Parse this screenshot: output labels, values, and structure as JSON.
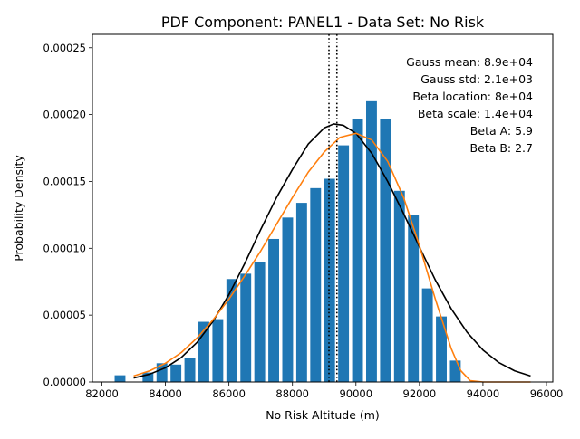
{
  "chart_data": {
    "type": "bar",
    "title": "PDF Component: PANEL1 - Data Set: No Risk",
    "xlabel": "No Risk Altitude (m)",
    "ylabel": "Probability Density",
    "xlim": [
      81700,
      96200
    ],
    "ylim": [
      0,
      0.00026
    ],
    "xticks": [
      82000,
      84000,
      86000,
      88000,
      90000,
      92000,
      94000,
      96000
    ],
    "xtick_labels": [
      "82000",
      "84000",
      "86000",
      "88000",
      "90000",
      "92000",
      "94000",
      "96000"
    ],
    "yticks": [
      0,
      5e-05,
      0.0001,
      0.00015,
      0.0002,
      0.00025
    ],
    "ytick_labels": [
      "0.00000",
      "0.00005",
      "0.00010",
      "0.00015",
      "0.00020",
      "0.00025"
    ],
    "grid": false,
    "histogram": {
      "name": "No Risk",
      "color": "#1f77b4",
      "bin_width": 440,
      "bar_width": 340,
      "bin_centers": [
        82570,
        83450,
        83890,
        84330,
        84770,
        85210,
        85650,
        86090,
        86530,
        86970,
        87410,
        87850,
        88290,
        88730,
        89170,
        89610,
        90050,
        90490,
        90930,
        91370,
        91810,
        92250,
        92690,
        93130
      ],
      "values": [
        5e-06,
        7e-06,
        1.4e-05,
        1.3e-05,
        1.8e-05,
        4.5e-05,
        4.7e-05,
        7.7e-05,
        8.1e-05,
        9e-05,
        0.000107,
        0.000123,
        0.000134,
        0.000145,
        0.000152,
        0.000177,
        0.000197,
        0.00021,
        0.000197,
        0.000143,
        0.000125,
        7e-05,
        4.9e-05,
        1.6e-05
      ]
    },
    "series": [
      {
        "type": "line",
        "color": "#000000",
        "x": [
          83000,
          83500,
          84000,
          84500,
          85000,
          85500,
          86000,
          86500,
          87000,
          87500,
          88000,
          88500,
          89000,
          89300,
          89600,
          90000,
          90500,
          91000,
          91500,
          92000,
          92500,
          93000,
          93500,
          94000,
          94500,
          95000,
          95500
        ],
        "y": [
          3e-06,
          5.8e-06,
          1.06e-05,
          1.83e-05,
          2.97e-05,
          4.54e-05,
          6.54e-05,
          8.88e-05,
          0.000114,
          0.000138,
          0.000159,
          0.000178,
          0.00019,
          0.000193,
          0.000192,
          0.000186,
          0.000171,
          0.00015,
          0.000126,
          0.000101,
          7.63e-05,
          5.48e-05,
          3.72e-05,
          2.39e-05,
          1.45e-05,
          8.3e-06,
          4.5e-06
        ]
      },
      {
        "type": "line",
        "color": "#ff7f0e",
        "x": [
          83000,
          83500,
          84000,
          84500,
          85000,
          85500,
          86000,
          86500,
          87000,
          87500,
          88000,
          88500,
          89000,
          89500,
          90000,
          90500,
          91000,
          91500,
          92000,
          92500,
          93000,
          93300,
          93600,
          94000,
          94500,
          95000,
          95500
        ],
        "y": [
          4.5e-06,
          8.3e-06,
          1.4e-05,
          2.2e-05,
          3.3e-05,
          4.65e-05,
          6.2e-05,
          7.95e-05,
          9.8e-05,
          0.000118,
          0.000138,
          0.000157,
          0.000172,
          0.000183,
          0.000186,
          0.000181,
          0.000165,
          0.000138,
          0.000102,
          6.2e-05,
          2.5e-05,
          8.5e-06,
          1e-06,
          0,
          0,
          0,
          0
        ]
      }
    ],
    "vlines": [
      {
        "x": 89150,
        "style": "dotted",
        "color": "#000000"
      },
      {
        "x": 89400,
        "style": "dotted",
        "color": "#000000"
      }
    ],
    "annotations": [
      "Gauss mean: 8.9e+04",
      "Gauss std: 2.1e+03",
      "Beta location: 8e+04",
      "Beta scale: 1.4e+04",
      "Beta A: 5.9",
      "Beta B: 2.7"
    ],
    "annotation_placement": "top-right"
  }
}
